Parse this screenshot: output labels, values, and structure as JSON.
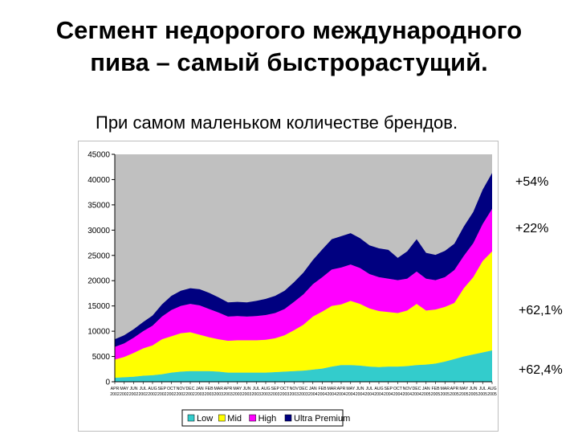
{
  "slide": {
    "title_line1": "Сегмент недорогого международного",
    "title_line2": "пива – самый быстрорастущий.",
    "subtitle": "При самом маленьком количестве брендов."
  },
  "growth_labels": {
    "ultra_premium": "+54%",
    "high": "+22%",
    "mid": "+62,1%",
    "low": "+62,4%"
  },
  "chart_data": {
    "type": "area",
    "stacked": true,
    "title": "",
    "xlabel": "",
    "ylabel": "",
    "ylim": [
      0,
      45000
    ],
    "yticks": [
      0,
      5000,
      10000,
      15000,
      20000,
      25000,
      30000,
      35000,
      40000,
      45000
    ],
    "grid": false,
    "plot_background": "#c0c0c0",
    "legend_position": "bottom",
    "x": [
      "APR 2002",
      "MAY 2002",
      "JUN 2002",
      "JUL 2002",
      "AUG 2002",
      "SEP 2002",
      "OCT 2002",
      "NOV 2002",
      "DEC 2002",
      "JAN 2003",
      "FEB 2003",
      "MAR 2003",
      "APR 2003",
      "MAY 2003",
      "JUN 2003",
      "JUL 2003",
      "AUG 2003",
      "SEP 2003",
      "OCT 2003",
      "NOV 2003",
      "DEC 2003",
      "JAN 2004",
      "FEB 2004",
      "MAR 2004",
      "APR 2004",
      "MAY 2004",
      "JUN 2004",
      "JUL 2004",
      "AUG 2004",
      "SEP 2004",
      "OCT 2004",
      "NOV 2004",
      "DEC 2004",
      "JAN 2005",
      "FEB 2005",
      "MAR 2005",
      "APR 2005",
      "MAY 2005",
      "JUN 2005",
      "JUL 2005",
      "AUG 2005"
    ],
    "series": [
      {
        "name": "Low",
        "color": "#33cccc",
        "values": [
          800,
          900,
          1000,
          1200,
          1300,
          1500,
          1800,
          2000,
          2100,
          2100,
          2100,
          2000,
          1800,
          1800,
          1800,
          1800,
          1800,
          1900,
          2000,
          2100,
          2200,
          2400,
          2600,
          3000,
          3300,
          3300,
          3200,
          3000,
          2900,
          3000,
          3000,
          3100,
          3300,
          3400,
          3600,
          4000,
          4500,
          5000,
          5400,
          5800,
          6200
        ]
      },
      {
        "name": "Mid",
        "color": "#ffff00",
        "values": [
          3600,
          4000,
          4700,
          5400,
          5900,
          6900,
          7200,
          7600,
          7700,
          7200,
          6700,
          6400,
          6300,
          6400,
          6400,
          6400,
          6500,
          6700,
          7200,
          8100,
          9100,
          10500,
          11300,
          12000,
          12000,
          12700,
          12200,
          11500,
          11100,
          10800,
          10600,
          11000,
          12100,
          10700,
          10700,
          10800,
          11100,
          13500,
          15300,
          18100,
          19600
        ]
      },
      {
        "name": "High",
        "color": "#ff00ff",
        "values": [
          2500,
          2700,
          3000,
          3400,
          3900,
          4500,
          5200,
          5400,
          5600,
          5800,
          5600,
          5300,
          4800,
          4800,
          4700,
          4800,
          4900,
          5000,
          5200,
          5600,
          6000,
          6400,
          6800,
          7200,
          7300,
          7200,
          7100,
          6800,
          6700,
          6600,
          6500,
          6300,
          6400,
          6300,
          5800,
          5900,
          6500,
          6400,
          6700,
          7300,
          8400
        ]
      },
      {
        "name": "Ultra Premium",
        "color": "#000080",
        "values": [
          1500,
          1600,
          1700,
          1800,
          2000,
          2400,
          2800,
          3000,
          3100,
          3200,
          3200,
          3000,
          2800,
          2800,
          2800,
          3000,
          3200,
          3400,
          3600,
          3900,
          4300,
          4800,
          5500,
          6000,
          6200,
          6200,
          5900,
          5700,
          5700,
          5700,
          4400,
          5400,
          6400,
          5100,
          5000,
          5200,
          5200,
          5800,
          6200,
          6800,
          7100
        ]
      }
    ]
  }
}
